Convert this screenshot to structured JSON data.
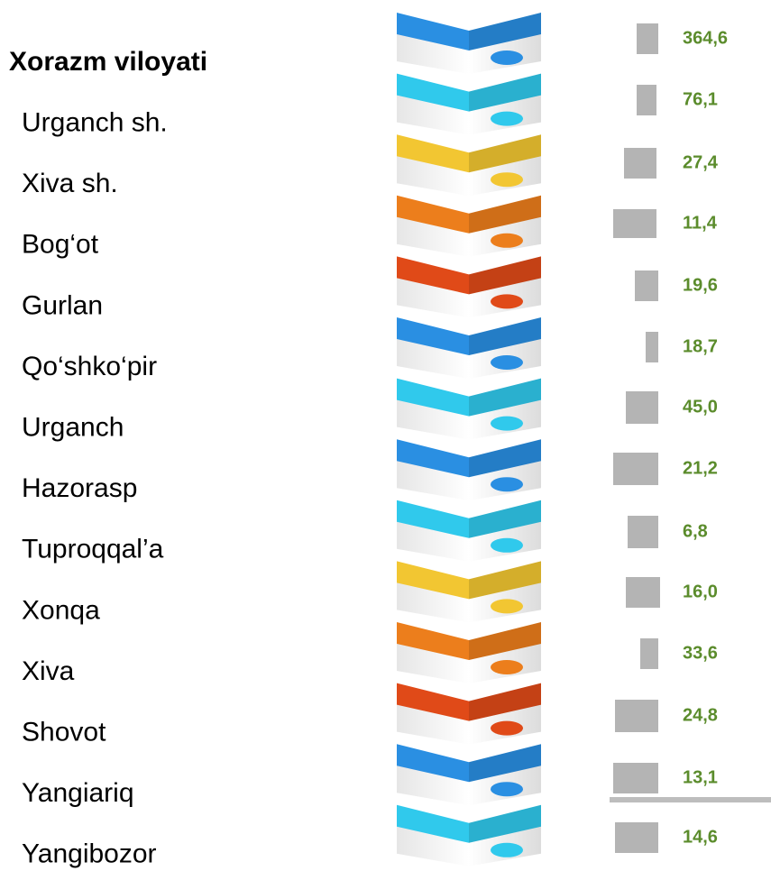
{
  "rows": [
    {
      "label": "Xorazm viloyati",
      "value": "364,6"
    },
    {
      "label": "Urganch sh.",
      "value": "76,1"
    },
    {
      "label": "Xiva sh.",
      "value": "27,4"
    },
    {
      "label": "Bog‘ot",
      "value": "11,4"
    },
    {
      "label": "Gurlan",
      "value": "19,6"
    },
    {
      "label": "Qo‘shko‘pir",
      "value": "18,7"
    },
    {
      "label": "Urganch",
      "value": "45,0"
    },
    {
      "label": "Hazorasp",
      "value": "21,2"
    },
    {
      "label": "Tuproqqal’a",
      "value": "6,8"
    },
    {
      "label": "Xonqa",
      "value": "16,0"
    },
    {
      "label": "Xiva",
      "value": "33,6"
    },
    {
      "label": "Shovot",
      "value": "24,8"
    },
    {
      "label": "Yangiariq",
      "value": "13,1"
    },
    {
      "label": "Yangibozor",
      "value": "14,6"
    }
  ]
}
